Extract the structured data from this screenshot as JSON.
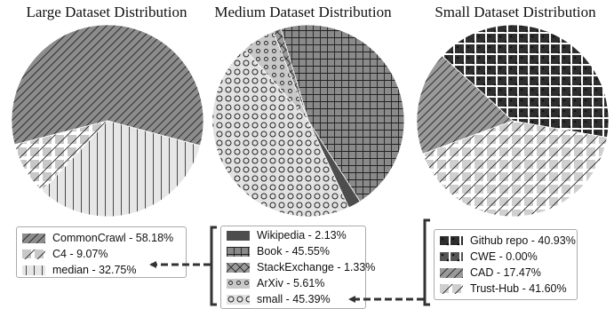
{
  "chart_data": [
    {
      "type": "pie",
      "title": "Large Dataset Distribution",
      "slices": [
        {
          "label": "CommonCrawl",
          "value": 58.18,
          "display": "CommonCrawl - 58.18%",
          "color": "#8c8c8c",
          "pattern": "diag-dense"
        },
        {
          "label": "C4",
          "value": 9.07,
          "display": "C4 - 9.07%",
          "color": "#c8c8c8",
          "pattern": "diag-sparse"
        },
        {
          "label": "median",
          "value": 32.75,
          "display": "median - 32.75%",
          "color": "#e6e6e6",
          "pattern": "vlines"
        }
      ]
    },
    {
      "type": "pie",
      "title": "Medium Dataset Distribution",
      "slices": [
        {
          "label": "Wikipedia",
          "value": 2.13,
          "display": "Wikipedia - 2.13%",
          "color": "#4d4d4d",
          "pattern": "solid"
        },
        {
          "label": "Book",
          "value": 45.55,
          "display": "Book - 45.55%",
          "color": "#8a8a8a",
          "pattern": "grid"
        },
        {
          "label": "StackExchange",
          "value": 1.33,
          "display": "StackExchange - 1.33%",
          "color": "#9a9a9a",
          "pattern": "cross"
        },
        {
          "label": "ArXiv",
          "value": 5.61,
          "display": "ArXiv - 5.61%",
          "color": "#c8c8c8",
          "pattern": "dots"
        },
        {
          "label": "small",
          "value": 45.39,
          "display": "small - 45.39%",
          "color": "#e2e2e2",
          "pattern": "rings"
        }
      ]
    },
    {
      "type": "pie",
      "title": "Small Dataset Distribution",
      "slices": [
        {
          "label": "Github repo",
          "value": 40.93,
          "display": "Github repo - 40.93%",
          "color": "#2e2e2e",
          "pattern": "stars"
        },
        {
          "label": "CWE",
          "value": 0.0,
          "display": "CWE - 0.00%",
          "color": "#555555",
          "pattern": "stars"
        },
        {
          "label": "CAD",
          "value": 17.47,
          "display": "CAD - 17.47%",
          "color": "#9a9a9a",
          "pattern": "diag-dense"
        },
        {
          "label": "Trust-Hub",
          "value": 41.6,
          "display": "Trust-Hub - 41.60%",
          "color": "#cfcfcf",
          "pattern": "diag-sparse"
        }
      ]
    }
  ]
}
